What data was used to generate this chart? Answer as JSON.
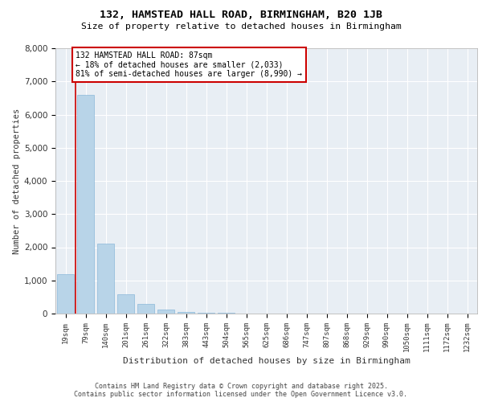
{
  "title": "132, HAMSTEAD HALL ROAD, BIRMINGHAM, B20 1JB",
  "subtitle": "Size of property relative to detached houses in Birmingham",
  "xlabel": "Distribution of detached houses by size in Birmingham",
  "ylabel": "Number of detached properties",
  "bar_color": "#b8d4e8",
  "bar_edge_color": "#7aafd4",
  "annotation_box_color": "#cc0000",
  "background_color": "#e8eef4",
  "grid_color": "#ffffff",
  "categories": [
    "19sqm",
    "79sqm",
    "140sqm",
    "201sqm",
    "261sqm",
    "322sqm",
    "383sqm",
    "443sqm",
    "504sqm",
    "565sqm",
    "625sqm",
    "686sqm",
    "747sqm",
    "807sqm",
    "868sqm",
    "929sqm",
    "990sqm",
    "1050sqm",
    "1111sqm",
    "1172sqm",
    "1232sqm"
  ],
  "values": [
    1200,
    6600,
    2100,
    580,
    280,
    130,
    60,
    30,
    20,
    10,
    8,
    5,
    4,
    3,
    2,
    2,
    1,
    1,
    1,
    1,
    1
  ],
  "highlight_index": 1,
  "vline_position": 0.5,
  "annotation_text": "132 HAMSTEAD HALL ROAD: 87sqm\n← 18% of detached houses are smaller (2,033)\n81% of semi-detached houses are larger (8,990) →",
  "ylim": [
    0,
    8000
  ],
  "yticks": [
    0,
    1000,
    2000,
    3000,
    4000,
    5000,
    6000,
    7000,
    8000
  ],
  "footer_line1": "Contains HM Land Registry data © Crown copyright and database right 2025.",
  "footer_line2": "Contains public sector information licensed under the Open Government Licence v3.0."
}
